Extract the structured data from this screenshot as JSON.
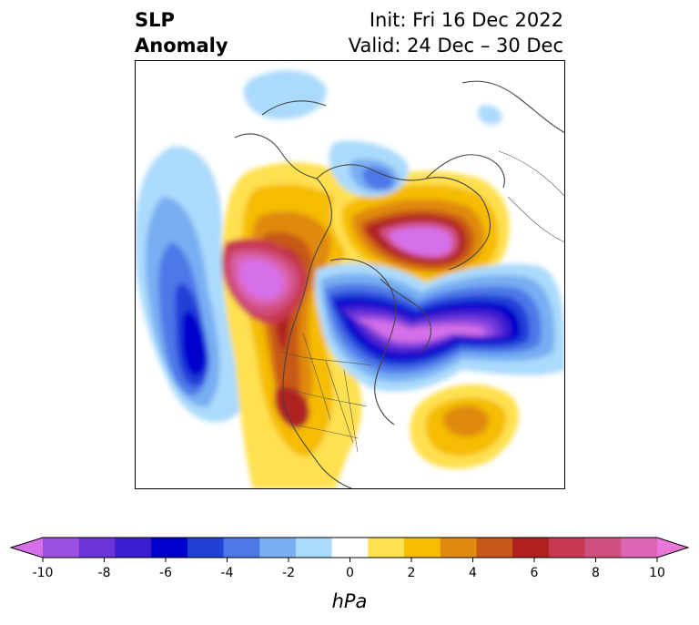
{
  "title": {
    "left_line1": "SLP",
    "left_line2": "Anomaly",
    "right_line1": "Init: Fri 16 Dec 2022",
    "right_line2": "Valid: 24 Dec – 30 Dec"
  },
  "colorbar": {
    "units": "hPa",
    "tick_labels": [
      "-10",
      "-8",
      "-6",
      "-4",
      "-2",
      "0",
      "2",
      "4",
      "6",
      "8",
      "10"
    ],
    "range": [
      -10,
      10
    ],
    "extend": "both",
    "colors": [
      "#d66fe8",
      "#9b50e0",
      "#6a34d8",
      "#3a1ed0",
      "#0000cc",
      "#2040d8",
      "#4d78e8",
      "#78aef2",
      "#aadafc",
      "#ffffff",
      "#ffe050",
      "#f5bc00",
      "#e08a10",
      "#c85818",
      "#b02020",
      "#c83850",
      "#d05080",
      "#dc64b4",
      "#e878d8"
    ]
  },
  "map": {
    "projection": "polar-stereographic",
    "region": "North America / North Atlantic / Arctic",
    "anomalies": [
      {
        "name": "north-pacific-low",
        "sign": "negative",
        "peak_hpa": -7
      },
      {
        "name": "alaska-canada-west-high",
        "sign": "positive",
        "peak_hpa": 10
      },
      {
        "name": "greenland-arctic-high",
        "sign": "positive",
        "peak_hpa": 10
      },
      {
        "name": "canada-hudson-bay-low",
        "sign": "negative",
        "peak_hpa": -10
      },
      {
        "name": "north-atlantic-low",
        "sign": "negative",
        "peak_hpa": -10
      },
      {
        "name": "western-us-high",
        "sign": "positive",
        "peak_hpa": 6
      },
      {
        "name": "central-atlantic-high",
        "sign": "positive",
        "peak_hpa": 4
      },
      {
        "name": "siberia-weak-low",
        "sign": "negative",
        "peak_hpa": -3
      }
    ]
  }
}
